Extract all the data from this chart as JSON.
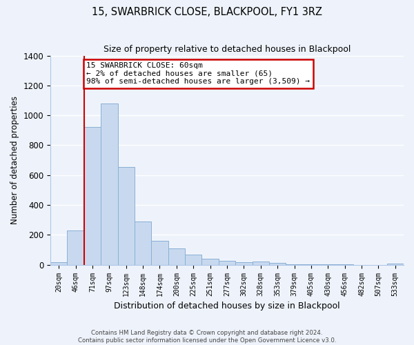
{
  "title": "15, SWARBRICK CLOSE, BLACKPOOL, FY1 3RZ",
  "subtitle": "Size of property relative to detached houses in Blackpool",
  "xlabel": "Distribution of detached houses by size in Blackpool",
  "ylabel": "Number of detached properties",
  "bar_labels": [
    "20sqm",
    "46sqm",
    "71sqm",
    "97sqm",
    "123sqm",
    "148sqm",
    "174sqm",
    "200sqm",
    "225sqm",
    "251sqm",
    "277sqm",
    "302sqm",
    "328sqm",
    "353sqm",
    "379sqm",
    "405sqm",
    "430sqm",
    "456sqm",
    "482sqm",
    "507sqm",
    "533sqm"
  ],
  "bar_values": [
    15,
    228,
    920,
    1080,
    655,
    290,
    158,
    108,
    70,
    40,
    25,
    18,
    20,
    12,
    5,
    3,
    2,
    1,
    0,
    0,
    8
  ],
  "bar_color": "#c8d9ef",
  "bar_edge_color": "#8aafd4",
  "property_line_x": 1.5,
  "property_line_color": "#cc0000",
  "ylim": [
    0,
    1400
  ],
  "yticks": [
    0,
    200,
    400,
    600,
    800,
    1000,
    1200,
    1400
  ],
  "annotation_title": "15 SWARBRICK CLOSE: 60sqm",
  "annotation_line1": "← 2% of detached houses are smaller (65)",
  "annotation_line2": "98% of semi-detached houses are larger (3,509) →",
  "annotation_box_color": "#ffffff",
  "annotation_border_color": "#cc0000",
  "footer_line1": "Contains HM Land Registry data © Crown copyright and database right 2024.",
  "footer_line2": "Contains public sector information licensed under the Open Government Licence v3.0.",
  "background_color": "#eef3fb",
  "grid_color": "#ffffff",
  "spine_color": "#aec6e8"
}
